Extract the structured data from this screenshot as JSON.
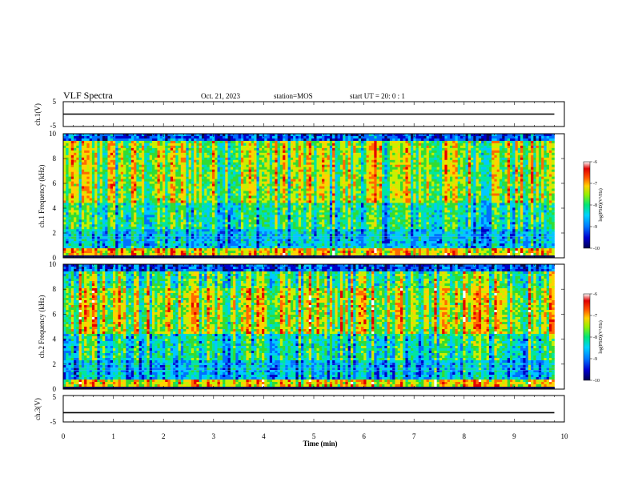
{
  "header": {
    "title": "VLF Spectra",
    "date": "Oct. 21, 2023",
    "station": "station=MOS",
    "start": "start UT =  20: 0 : 1"
  },
  "colors": {
    "spectrum": [
      "#0a0a55",
      "#0000c8",
      "#0070ff",
      "#00c8ff",
      "#00e6a0",
      "#32dc32",
      "#c8f000",
      "#ffd200",
      "#ff6a00",
      "#e60000",
      "#ffffff"
    ]
  },
  "chart_data": [
    {
      "type": "line",
      "name": "ch1-voltage",
      "ylabel": "ch.1(V)",
      "ylim": [
        -5,
        5
      ],
      "yticks": [
        "5",
        "-5"
      ],
      "xlim": [
        0,
        10
      ],
      "x": [
        0,
        9.8
      ],
      "y": [
        0,
        0
      ]
    },
    {
      "type": "heatmap",
      "name": "ch1-spectrogram",
      "ylabel": "ch.1 Frequency (kHz)",
      "ylim": [
        0,
        10
      ],
      "yticks": [
        "0",
        "2",
        "4",
        "6",
        "8",
        "10"
      ],
      "xlim": [
        0,
        10
      ],
      "data_xmax": 9.8,
      "colorbar": {
        "label": "log(PSD)(V²/Hz)",
        "range": [
          -10,
          -6
        ],
        "ticks": [
          "-6",
          "-7",
          "-8",
          "-9",
          "-10"
        ]
      }
    },
    {
      "type": "heatmap",
      "name": "ch2-spectrogram",
      "ylabel": "ch.2 Frequency (kHz)",
      "ylim": [
        0,
        10
      ],
      "yticks": [
        "0",
        "2",
        "4",
        "6",
        "8",
        "10"
      ],
      "xlim": [
        0,
        10
      ],
      "data_xmax": 9.8,
      "colorbar": {
        "label": "log(PSD)(V²/Hz)",
        "range": [
          -10,
          -6
        ],
        "ticks": [
          "-6",
          "-7",
          "-8",
          "-9",
          "-10"
        ]
      }
    },
    {
      "type": "line",
      "name": "ch3-voltage",
      "ylabel": "ch.3(V)",
      "ylim": [
        -5,
        5
      ],
      "yticks": [
        "5",
        "-5"
      ],
      "xlim": [
        0,
        10
      ],
      "x": [
        0,
        9.8
      ],
      "y": [
        -1.5,
        -1.5
      ]
    }
  ],
  "xaxis": {
    "label": "Time (min)",
    "ticks": [
      "0",
      "1",
      "2",
      "3",
      "4",
      "5",
      "6",
      "7",
      "8",
      "9",
      "10"
    ]
  }
}
